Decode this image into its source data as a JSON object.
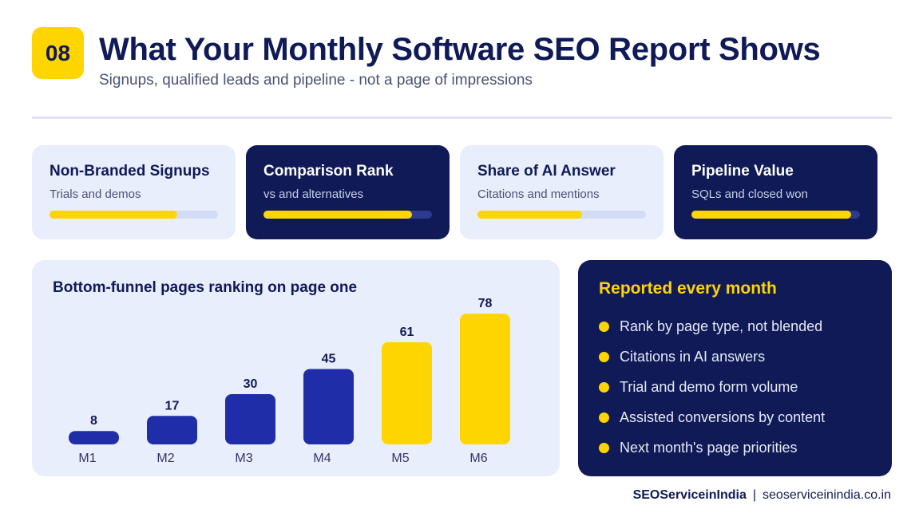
{
  "header": {
    "badge": "08",
    "title": "What Your Monthly Software SEO Report Shows",
    "subtitle": "Signups, qualified leads and pipeline - not a page of impressions"
  },
  "kpis": [
    {
      "title": "Non-Branded Signups",
      "subtitle": "Trials and demos",
      "progress": 0.76,
      "theme": "light"
    },
    {
      "title": "Comparison Rank",
      "subtitle": "vs and alternatives",
      "progress": 0.88,
      "theme": "dark"
    },
    {
      "title": "Share of AI Answer",
      "subtitle": "Citations and mentions",
      "progress": 0.62,
      "theme": "light"
    },
    {
      "title": "Pipeline Value",
      "subtitle": "SQLs and closed won",
      "progress": 0.95,
      "theme": "dark"
    }
  ],
  "chart_data": {
    "type": "bar",
    "title": "Bottom-funnel pages ranking on page one",
    "categories": [
      "M1",
      "M2",
      "M3",
      "M4",
      "M5",
      "M6"
    ],
    "values": [
      8,
      17,
      30,
      45,
      61,
      78
    ],
    "highlight": [
      false,
      false,
      false,
      false,
      true,
      true
    ],
    "colors": {
      "base": "#1f2ea8",
      "highlight": "#ffd500"
    },
    "xlabel": "",
    "ylabel": "",
    "grid": false
  },
  "report": {
    "title": "Reported every month",
    "items": [
      "Rank by page type, not blended",
      "Citations in AI answers",
      "Trial and demo form volume",
      "Assisted conversions by content",
      "Next month's page priorities"
    ]
  },
  "footer": {
    "brand": "SEOServiceinIndia",
    "separator": "|",
    "url": "seoserviceinindia.co.in"
  },
  "colors": {
    "navy": "#0f1a57",
    "yellow": "#ffd500",
    "light_panel": "#e9eefc",
    "bar_blue": "#1f2ea8"
  }
}
